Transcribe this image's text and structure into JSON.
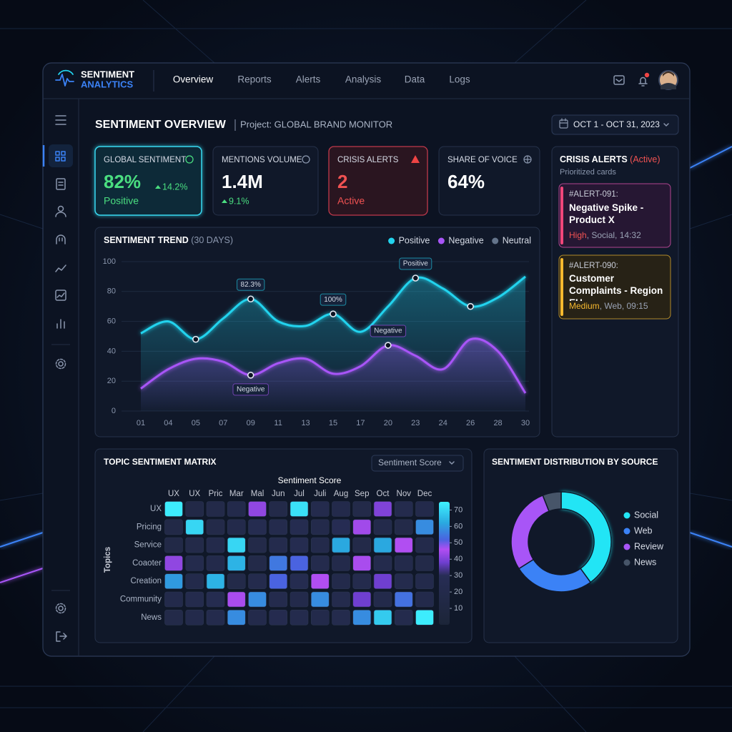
{
  "brand": {
    "name": "SENTIMENT",
    "sub": "ANALYTICS"
  },
  "nav": {
    "tabs": [
      "Overview",
      "Reports",
      "Alerts",
      "Analysis",
      "Data",
      "Logs"
    ],
    "active": 0
  },
  "header": {
    "title": "SENTIMENT OVERVIEW",
    "project": "Project: GLOBAL BRAND MONITOR",
    "date_range": "OCT 1 - OCT 31, 2023"
  },
  "kpis": [
    {
      "label": "GLOBAL SENTIMENT",
      "value": "82%",
      "change": "14.2%",
      "status": "Positive"
    },
    {
      "label": "MENTIONS VOLUME",
      "value": "1.4M",
      "change": "9.1%"
    },
    {
      "label": "CRISIS ALERTS",
      "value": "2",
      "status": "Active"
    },
    {
      "label": "SHARE OF VOICE",
      "value": "64%"
    }
  ],
  "alerts_panel": {
    "title": "CRISIS ALERTS",
    "status": "(Active)",
    "subtitle": "Prioritized cards",
    "cards": [
      {
        "id": "#ALERT-091:",
        "title": "Negative Spike - Product X",
        "severity": "High",
        "meta": ", Social, 14:32"
      },
      {
        "id": "#ALERT-090:",
        "title": "Customer Complaints - Region EU",
        "severity": "Medium",
        "meta": ", Web, 09:15"
      }
    ]
  },
  "chart_data": [
    {
      "type": "line",
      "title": "SENTIMENT TREND",
      "subtitle": "(30 DAYS)",
      "categories": [
        "01",
        "04",
        "05",
        "07",
        "09",
        "11",
        "13",
        "15",
        "17",
        "20",
        "23",
        "24",
        "26",
        "28",
        "30"
      ],
      "series": [
        {
          "name": "Positive",
          "color": "#22d3ee",
          "values": [
            52,
            60,
            48,
            62,
            75,
            60,
            57,
            65,
            53,
            70,
            89,
            82,
            70,
            76,
            90
          ]
        },
        {
          "name": "Negative",
          "color": "#a855f7",
          "values": [
            15,
            28,
            35,
            33,
            24,
            32,
            35,
            25,
            30,
            44,
            37,
            28,
            48,
            40,
            12
          ]
        },
        {
          "name": "Neutral",
          "color": "#64748b",
          "values": [
            null,
            null,
            null,
            null,
            null,
            null,
            null,
            null,
            null,
            null,
            null,
            null,
            null,
            null,
            null
          ]
        }
      ],
      "ylim": [
        0,
        100
      ],
      "yticks": [
        0,
        20,
        40,
        60,
        80,
        100
      ],
      "grid": true,
      "legend": "top-right",
      "annotations": [
        "82.3%",
        "100%",
        "Positive",
        "Negative",
        "Negative"
      ]
    },
    {
      "type": "heatmap",
      "title": "TOPIC SENTIMENT MATRIX",
      "control": "Sentiment Score",
      "x_label": "Sentiment Score",
      "y_label": "Topics",
      "categories": [
        "UX",
        "UX",
        "Pric",
        "Mar",
        "Mal",
        "Jun",
        "Jul",
        "Juli",
        "Aug",
        "Sep",
        "Oct",
        "Nov",
        "Dec"
      ],
      "rows": [
        "UX",
        "Pricing",
        "Service",
        "Coaoter",
        "Creation",
        "Community",
        "News"
      ],
      "values": [
        [
          74,
          15,
          18,
          20,
          42,
          18,
          72,
          22,
          20,
          18,
          40,
          22,
          20
        ],
        [
          15,
          70,
          18,
          20,
          25,
          22,
          25,
          20,
          28,
          44,
          20,
          18,
          58
        ],
        [
          15,
          18,
          20,
          70,
          18,
          22,
          25,
          20,
          62,
          18,
          62,
          46,
          20
        ],
        [
          42,
          22,
          20,
          64,
          18,
          55,
          52,
          22,
          20,
          45,
          22,
          20,
          18
        ],
        [
          60,
          20,
          64,
          18,
          22,
          52,
          25,
          46,
          20,
          22,
          38,
          22,
          20
        ],
        [
          20,
          22,
          25,
          45,
          58,
          22,
          20,
          58,
          22,
          38,
          20,
          54,
          20
        ],
        [
          18,
          20,
          22,
          58,
          20,
          24,
          22,
          20,
          22,
          58,
          68,
          22,
          74
        ]
      ],
      "zlim": [
        0,
        75
      ],
      "zticks": [
        10,
        20,
        30,
        40,
        50,
        60,
        70
      ],
      "colorscale": [
        {
          "value": 0,
          "color": "#1c2538"
        },
        {
          "value": 30,
          "color": "#272d55"
        },
        {
          "value": 38,
          "color": "#6f3fd0"
        },
        {
          "value": 46,
          "color": "#b14ef2"
        },
        {
          "value": 52,
          "color": "#4a63e0"
        },
        {
          "value": 62,
          "color": "#2aa8e0"
        },
        {
          "value": 75,
          "color": "#3ff2ff"
        }
      ]
    },
    {
      "type": "donut",
      "title": "SENTIMENT DISTRIBUTION BY SOURCE",
      "categories": [
        "Social",
        "Web",
        "Review",
        "News"
      ],
      "values": [
        40,
        26,
        28,
        6
      ],
      "colors": [
        "#22e5f5",
        "#3b82f6",
        "#a855f7",
        "#475569"
      ],
      "legend": "right"
    }
  ]
}
